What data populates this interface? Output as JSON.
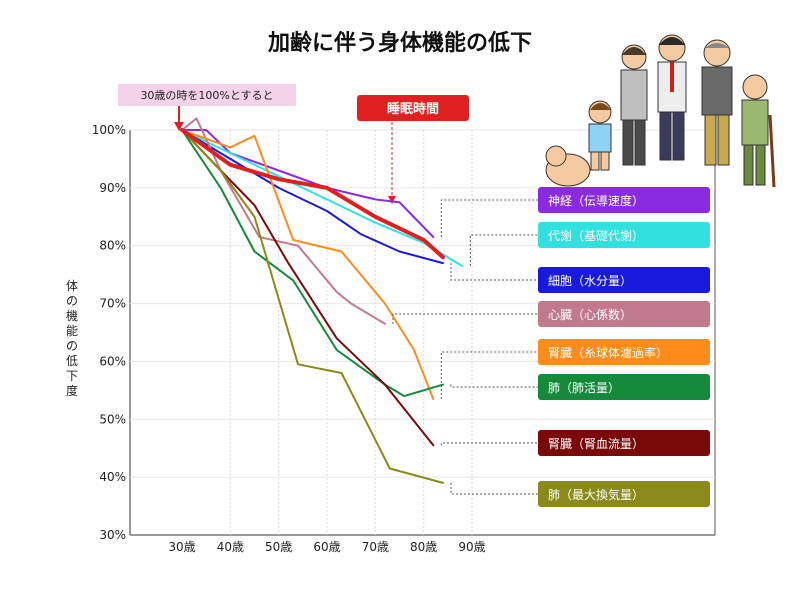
{
  "chart_data": {
    "type": "line",
    "title": "加齢に伴う身体機能の低下",
    "ylabel": "体の機能の低下度",
    "x_ticks": [
      "30歳",
      "40歳",
      "50歳",
      "60歳",
      "70歳",
      "80歳",
      "90歳"
    ],
    "y_ticks": [
      "100%",
      "90%",
      "80%",
      "70%",
      "60%",
      "50%",
      "40%",
      "30%"
    ],
    "xlim": [
      20,
      90
    ],
    "ylim": [
      30,
      100
    ],
    "annotation": "30歳の時を100%とすると",
    "highlight_label": "睡眠時間",
    "series": [
      {
        "name": "神経（伝導速度）",
        "color": "#8a2be2",
        "label_bg": "#8a2be2",
        "points": [
          [
            30,
            100
          ],
          [
            35,
            100
          ],
          [
            40,
            96
          ],
          [
            50,
            93
          ],
          [
            60,
            90
          ],
          [
            70,
            88
          ],
          [
            75,
            87.5
          ],
          [
            82,
            81.5
          ]
        ]
      },
      {
        "name": "代謝（基礎代謝）",
        "color": "#33e0e0",
        "label_bg": "#33e0e0",
        "points": [
          [
            30,
            100
          ],
          [
            40,
            96
          ],
          [
            50,
            92
          ],
          [
            60,
            88
          ],
          [
            70,
            84
          ],
          [
            80,
            80.5
          ],
          [
            88,
            76.5
          ]
        ]
      },
      {
        "name": "細胞（水分量）",
        "color": "#1a1add",
        "label_bg": "#1a1add",
        "points": [
          [
            30,
            100
          ],
          [
            40,
            95
          ],
          [
            50,
            90
          ],
          [
            60,
            86
          ],
          [
            67,
            82
          ],
          [
            75,
            79
          ],
          [
            84,
            77
          ]
        ]
      },
      {
        "name": "心臓（心係数）",
        "color": "#c07a8c",
        "label_bg": "#c07a8c",
        "points": [
          [
            30,
            100
          ],
          [
            33,
            102
          ],
          [
            38,
            93
          ],
          [
            46,
            81.5
          ],
          [
            54,
            80
          ],
          [
            62,
            72
          ],
          [
            65,
            70
          ],
          [
            72,
            66.5
          ]
        ]
      },
      {
        "name": "腎臓（糸球体濾過率）",
        "color": "#ff8c1a",
        "label_bg": "#ff8c1a",
        "points": [
          [
            30,
            100
          ],
          [
            40,
            97
          ],
          [
            45,
            99
          ],
          [
            53,
            81
          ],
          [
            63,
            79
          ],
          [
            72,
            70
          ],
          [
            78,
            62
          ],
          [
            82,
            53.5
          ]
        ]
      },
      {
        "name": "肺（肺活量）",
        "color": "#158a3a",
        "label_bg": "#158a3a",
        "points": [
          [
            30,
            100
          ],
          [
            38,
            90
          ],
          [
            45,
            79
          ],
          [
            53,
            74
          ],
          [
            62,
            62
          ],
          [
            72,
            56
          ],
          [
            76,
            54
          ],
          [
            84,
            56
          ]
        ]
      },
      {
        "name": "腎臓（腎血流量）",
        "color": "#7a0a0a",
        "label_bg": "#7a0a0a",
        "points": [
          [
            30,
            100
          ],
          [
            38,
            93
          ],
          [
            45,
            87
          ],
          [
            52,
            77
          ],
          [
            62,
            64
          ],
          [
            72,
            56
          ],
          [
            82,
            45.5
          ]
        ]
      },
      {
        "name": "肺（最大換気量）",
        "color": "#8a8a1a",
        "label_bg": "#8a8a1a",
        "points": [
          [
            30,
            100
          ],
          [
            38,
            93
          ],
          [
            45,
            85
          ],
          [
            54,
            59.5
          ],
          [
            63,
            58
          ],
          [
            73,
            41.5
          ],
          [
            84,
            39
          ]
        ]
      },
      {
        "name": "睡眠時間",
        "color": "#e02020",
        "points": [
          [
            30,
            100
          ],
          [
            40,
            94
          ],
          [
            50,
            91.5
          ],
          [
            60,
            90
          ],
          [
            70,
            85
          ],
          [
            80,
            81
          ],
          [
            84,
            78
          ]
        ]
      }
    ]
  },
  "icons": {
    "people": "elderly-family-illustration"
  }
}
